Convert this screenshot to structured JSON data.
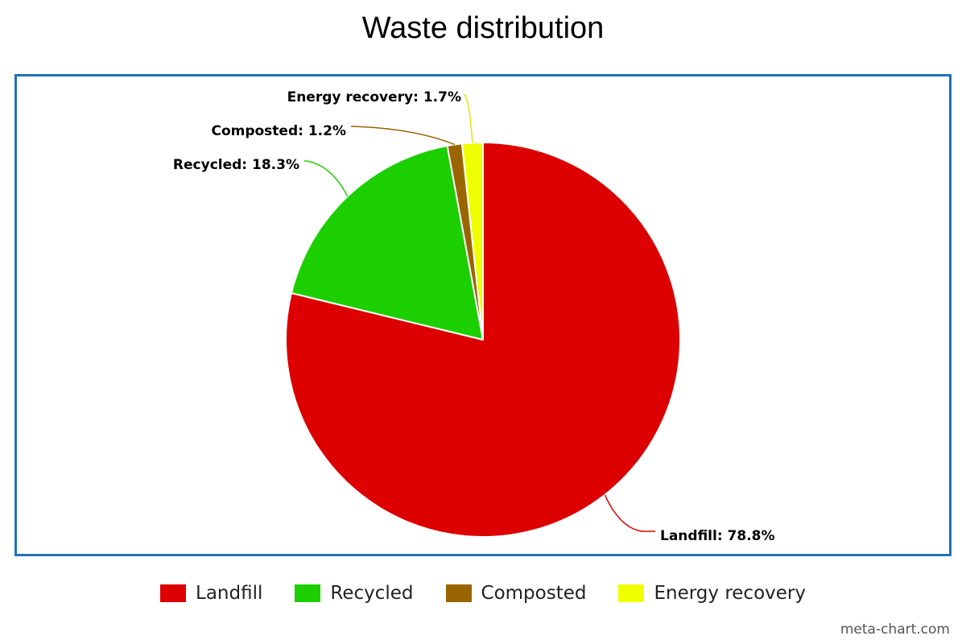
{
  "chart_data": {
    "type": "pie",
    "title": "Waste distribution",
    "categories": [
      "Landfill",
      "Recycled",
      "Composted",
      "Energy recovery"
    ],
    "values": [
      78.8,
      18.3,
      1.2,
      1.7
    ],
    "data_labels": [
      "Landfill: 78.8%",
      "Recycled: 18.3%",
      "Composted: 1.2%",
      "Energy recovery: 1.7%"
    ],
    "colors": [
      "#dd0000",
      "#1ccf00",
      "#9a6500",
      "#eeff00"
    ],
    "legend_position": "bottom",
    "start_angle": "12 o'clock",
    "direction": "clockwise"
  },
  "legend": {
    "items": [
      {
        "label": "Landfill",
        "color": "#dd0000"
      },
      {
        "label": "Recycled",
        "color": "#1ccf00"
      },
      {
        "label": "Composted",
        "color": "#9a6500"
      },
      {
        "label": "Energy recovery",
        "color": "#eeff00"
      }
    ]
  },
  "frame_color": "#1f72b8",
  "watermark": "meta-chart.com"
}
